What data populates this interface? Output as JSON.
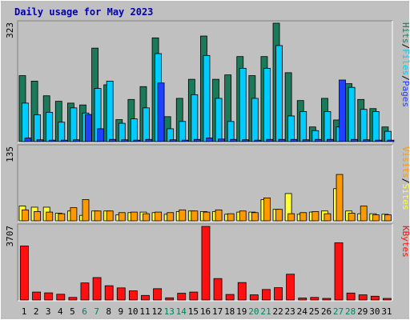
{
  "title": "Daily usage for May 2023",
  "colors": {
    "background": "#c0c0c0",
    "plot_bg": "#c0c0c0",
    "hits": "#1a7a5a",
    "files": "#00ccff",
    "pages": "#2040ff",
    "visits": "#ff9900",
    "sites": "#ffff33",
    "kbytes": "#ff1010",
    "title_text": "#0000aa",
    "weekend_day": "#008060",
    "weekday_day": "#000000"
  },
  "chart_data": [
    {
      "type": "bar",
      "name": "hits-files-pages",
      "scale_label": "323",
      "ylim": [
        0,
        323
      ],
      "legend": [
        "Pages",
        "/",
        "Files",
        "/",
        "Hits"
      ],
      "categories": [
        "1",
        "2",
        "3",
        "4",
        "5",
        "6",
        "7",
        "8",
        "9",
        "10",
        "11",
        "12",
        "13",
        "14",
        "15",
        "16",
        "17",
        "18",
        "19",
        "20",
        "21",
        "22",
        "23",
        "24",
        "25",
        "26",
        "27",
        "28",
        "29",
        "30",
        "31"
      ],
      "series": [
        {
          "name": "Hits",
          "values": [
            180,
            165,
            125,
            110,
            105,
            100,
            255,
            155,
            60,
            115,
            150,
            283,
            68,
            118,
            170,
            288,
            170,
            182,
            232,
            180,
            232,
            323,
            188,
            112,
            40,
            118,
            59,
            158,
            115,
            90,
            40
          ]
        },
        {
          "name": "Files",
          "values": [
            105,
            73,
            80,
            53,
            92,
            78,
            145,
            165,
            50,
            62,
            92,
            240,
            35,
            55,
            128,
            235,
            118,
            55,
            200,
            118,
            200,
            262,
            70,
            82,
            30,
            82,
            40,
            148,
            88,
            82,
            28
          ]
        },
        {
          "name": "Pages",
          "values": [
            10,
            5,
            4,
            4,
            5,
            74,
            35,
            6,
            5,
            4,
            6,
            160,
            5,
            4,
            6,
            10,
            7,
            6,
            5,
            4,
            6,
            6,
            6,
            5,
            6,
            6,
            168,
            6,
            5,
            4,
            4
          ]
        }
      ]
    },
    {
      "type": "bar",
      "name": "visits-sites",
      "scale_label": "135",
      "ylim": [
        0,
        135
      ],
      "legend": [
        "Sites",
        "/",
        "Visits"
      ],
      "categories": [
        "1",
        "2",
        "3",
        "4",
        "5",
        "6",
        "7",
        "8",
        "9",
        "10",
        "11",
        "12",
        "13",
        "14",
        "15",
        "16",
        "17",
        "18",
        "19",
        "20",
        "21",
        "22",
        "23",
        "24",
        "25",
        "26",
        "27",
        "28",
        "29",
        "30",
        "31"
      ],
      "series": [
        {
          "name": "Sites",
          "values": [
            27,
            25,
            25,
            14,
            18,
            10,
            18,
            18,
            11,
            15,
            16,
            15,
            12,
            17,
            18,
            17,
            17,
            12,
            16,
            16,
            39,
            21,
            50,
            12,
            16,
            18,
            59,
            18,
            13,
            13,
            12
          ]
        },
        {
          "name": "Visits",
          "values": [
            20,
            17,
            16,
            13,
            24,
            39,
            18,
            18,
            15,
            16,
            13,
            16,
            15,
            20,
            18,
            16,
            20,
            13,
            18,
            15,
            42,
            21,
            13,
            15,
            17,
            13,
            85,
            14,
            27,
            11,
            11
          ]
        }
      ]
    },
    {
      "type": "bar",
      "name": "kbytes",
      "scale_label": "3707",
      "ylim": [
        0,
        3707
      ],
      "legend": [
        "KBytes"
      ],
      "categories": [
        "1",
        "2",
        "3",
        "4",
        "5",
        "6",
        "7",
        "8",
        "9",
        "10",
        "11",
        "12",
        "13",
        "14",
        "15",
        "16",
        "17",
        "18",
        "19",
        "20",
        "21",
        "22",
        "23",
        "24",
        "25",
        "26",
        "27",
        "28",
        "29",
        "30",
        "31"
      ],
      "series": [
        {
          "name": "KBytes",
          "values": [
            2720,
            400,
            360,
            290,
            130,
            860,
            1130,
            720,
            610,
            460,
            230,
            570,
            110,
            340,
            400,
            3707,
            1080,
            280,
            880,
            260,
            530,
            620,
            1300,
            100,
            130,
            80,
            2880,
            350,
            260,
            190,
            80
          ]
        }
      ]
    }
  ]
}
